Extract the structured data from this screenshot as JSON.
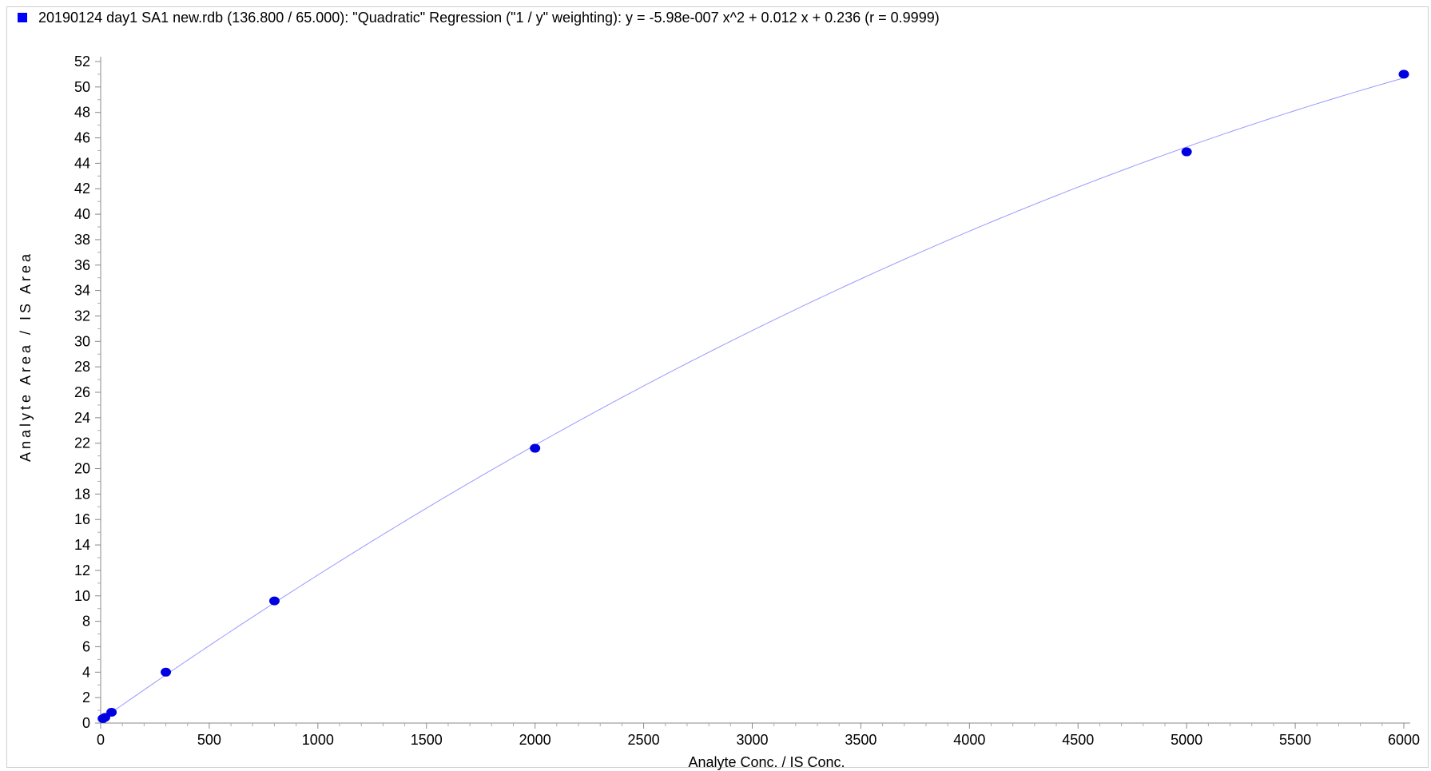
{
  "legend": {
    "text": "20190124 day1 SA1 new.rdb (136.800 / 65.000): \"Quadratic\" Regression (\"1 / y\" weighting): y = -5.98e-007 x^2 + 0.012 x + 0.236 (r = 0.9999)",
    "marker_color": "#0000ff"
  },
  "chart_data": {
    "type": "scatter",
    "xlabel": "Analyte Conc. / IS Conc.",
    "ylabel": "Analyte Area / IS Area",
    "xlim": [
      0,
      6000
    ],
    "ylim": [
      0,
      52
    ],
    "x_ticks": [
      0,
      500,
      1000,
      1500,
      2000,
      2500,
      3000,
      3500,
      4000,
      4500,
      5000,
      5500,
      6000
    ],
    "y_ticks": [
      0,
      2,
      4,
      6,
      8,
      10,
      12,
      14,
      16,
      18,
      20,
      22,
      24,
      26,
      28,
      30,
      32,
      34,
      36,
      38,
      40,
      42,
      44,
      46,
      48,
      50,
      52
    ],
    "points": [
      {
        "x": 10,
        "y": 0.35
      },
      {
        "x": 20,
        "y": 0.45
      },
      {
        "x": 50,
        "y": 0.85
      },
      {
        "x": 300,
        "y": 4.0
      },
      {
        "x": 800,
        "y": 9.6
      },
      {
        "x": 2000,
        "y": 21.6
      },
      {
        "x": 5000,
        "y": 44.9
      },
      {
        "x": 6000,
        "y": 51.0
      }
    ],
    "fit": {
      "type": "quadratic",
      "coefficients": {
        "a": -5.98e-07,
        "b": 0.012,
        "c": 0.236
      }
    },
    "point_color": "#0000e0",
    "fit_color": "#9999ff",
    "grid": false,
    "legend_position": "top-left"
  }
}
